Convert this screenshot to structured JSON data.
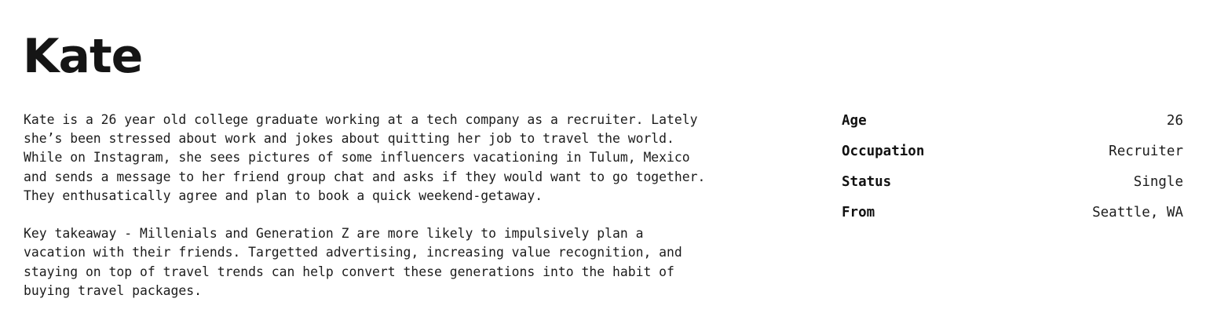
{
  "profile": {
    "name": "Kate",
    "paragraphs": [
      "Kate is a 26 year old college graduate working at a tech company as a recruiter. Lately\nshe’s been stressed about work and jokes about quitting her job to travel the world.\nWhile on Instagram, she sees pictures of some influencers vacationing in Tulum, Mexico\nand sends a message to her friend group chat and asks if they would want to go together.\nThey enthusatically agree and plan to book a quick weekend-getaway.",
      "Key takeaway - Millenials and Generation Z are more likely to impulsively plan a\nvacation with their friends. Targetted advertising, increasing value recognition, and\nstaying on top of travel trends can help convert these generations into the habit of\nbuying travel packages."
    ],
    "facts": [
      {
        "label": "Age",
        "value": "26"
      },
      {
        "label": "Occupation",
        "value": "Recruiter"
      },
      {
        "label": "Status",
        "value": "Single"
      },
      {
        "label": "From",
        "value": "Seattle, WA"
      }
    ]
  }
}
